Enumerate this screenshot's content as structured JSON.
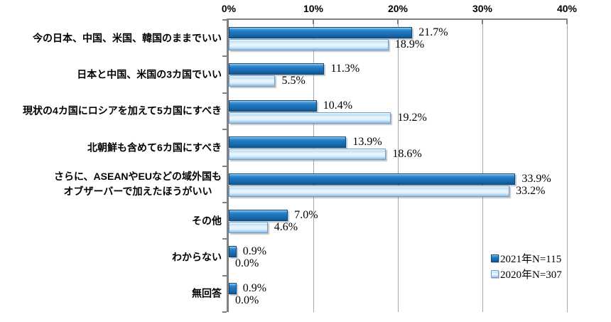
{
  "chart_data": {
    "type": "bar",
    "orientation": "horizontal",
    "title": "",
    "x_axis": {
      "position": "top",
      "min": 0,
      "max": 40,
      "tick_step": 10,
      "tick_labels": [
        "0%",
        "10%",
        "20%",
        "30%",
        "40%"
      ],
      "grid": true
    },
    "categories": [
      "今の日本、中国、米国、韓国のままでいい",
      "日本と中国、米国の3カ国でいい",
      "現状の4カ国にロシアを加えて5カ国にすべき",
      "北朝鮮も含めて6カ国にすべき",
      "さらに、ASEANやEUなどの域外国も\nオブザーバーで加えたほうがいい",
      "その他",
      "わからない",
      "無回答"
    ],
    "series": [
      {
        "name": "2021年N=115",
        "values": [
          21.7,
          11.3,
          10.4,
          13.9,
          33.9,
          7.0,
          0.9,
          0.9
        ],
        "value_labels": [
          "21.7%",
          "11.3%",
          "10.4%",
          "13.9%",
          "33.9%",
          "7.0%",
          "0.9%",
          "0.9%"
        ],
        "color": "#1a6cb0"
      },
      {
        "name": "2020年N=307",
        "values": [
          18.9,
          5.5,
          19.2,
          18.6,
          33.2,
          4.6,
          0.0,
          0.0
        ],
        "value_labels": [
          "18.9%",
          "5.5%",
          "19.2%",
          "18.6%",
          "33.2%",
          "4.6%",
          "0.0%",
          "0.0%"
        ],
        "color": "#dceefb"
      }
    ],
    "legend": {
      "position": "inside-bottom-right",
      "entries": [
        "2021年N=115",
        "2020年N=307"
      ]
    },
    "colors": {
      "axis": "#808080",
      "gridline": "#a8a8a8",
      "text": "#000000"
    }
  }
}
